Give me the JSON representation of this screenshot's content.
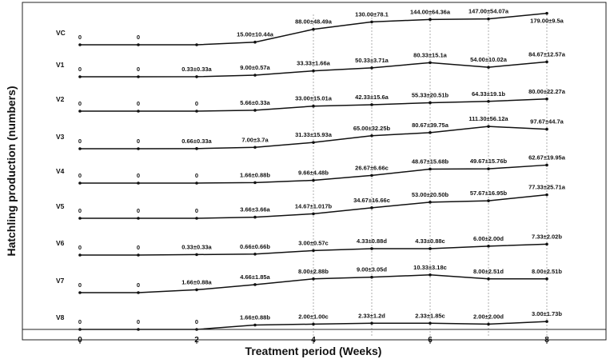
{
  "chart_data": {
    "type": "line",
    "xlabel": "Treatment period (Weeks)",
    "ylabel": "Hatchling production (numbers)",
    "x": [
      0,
      1,
      2,
      3,
      4,
      5,
      6,
      7,
      8
    ],
    "xticks": [
      "0",
      "2",
      "4",
      "6",
      "8"
    ],
    "xlim": [
      0,
      8
    ],
    "grid": false,
    "series": [
      {
        "name": "VC",
        "values": [
          0,
          0,
          0,
          15.0,
          88.0,
          130.0,
          144.0,
          147.0,
          179.0
        ],
        "labels": [
          "0",
          "0",
          "",
          "15.00±10.44a",
          "88.00±48.49a",
          "130.00±78.1",
          "144.00±64.36a",
          "147.00±54.07a",
          "179.00±9.5a"
        ]
      },
      {
        "name": "V1",
        "values": [
          0,
          0,
          0.33,
          9.0,
          33.33,
          50.33,
          80.33,
          54.0,
          84.67
        ],
        "labels": [
          "0",
          "0",
          "0.33±0.33a",
          "9.00±0.57a",
          "33.33±1.66a",
          "50.33±3.71a",
          "80.33±15.1a",
          "54.00±10.02a",
          "84.67±12.57a"
        ]
      },
      {
        "name": "V2",
        "values": [
          0,
          0,
          0,
          5.66,
          33.0,
          42.33,
          55.33,
          64.33,
          80.0
        ],
        "labels": [
          "0",
          "0",
          "0",
          "5.66±0.33a",
          "33.00±15.01a",
          "42.33±15.6a",
          "55.33±20.51b",
          "64.33±19.1b",
          "80.00±22.27a"
        ]
      },
      {
        "name": "V3",
        "values": [
          0,
          0,
          0.66,
          7.0,
          31.33,
          65.0,
          80.67,
          111.3,
          97.67
        ],
        "labels": [
          "0",
          "0",
          "0.66±0.33a",
          "7.00±3.7a",
          "31.33±15.93a",
          "65.00±32.25b",
          "80.67±39.75a",
          "111.30±56.12a",
          "97.67±44.7a"
        ]
      },
      {
        "name": "V4",
        "values": [
          0,
          0,
          0,
          1.66,
          9.66,
          26.67,
          48.67,
          49.67,
          62.67
        ],
        "labels": [
          "0",
          "0",
          "0",
          "1.66±0.88b",
          "9.66±4.48b",
          "26.67±6.66c",
          "48.67±15.68b",
          "49.67±15.76b",
          "62.67±19.95a"
        ]
      },
      {
        "name": "V5",
        "values": [
          0,
          0,
          0,
          3.66,
          14.67,
          34.67,
          53.0,
          57.67,
          77.33
        ],
        "labels": [
          "0",
          "0",
          "0",
          "3.66±3.66a",
          "14.67±1.017b",
          "34.67±16.66c",
          "53.00±20.50b",
          "57.67±16.95b",
          "77.33±25.71a"
        ]
      },
      {
        "name": "V6",
        "values": [
          0,
          0,
          0.33,
          0.66,
          3.0,
          4.33,
          4.33,
          6.0,
          7.33
        ],
        "labels": [
          "0",
          "0",
          "0.33±0.33a",
          "0.66±0.66b",
          "3.00±0.57c",
          "4.33±0.88d",
          "4.33±0.88c",
          "6.00±2.00d",
          "7.33±2.02b"
        ]
      },
      {
        "name": "V7",
        "values": [
          0,
          0,
          1.66,
          4.66,
          8.0,
          9.0,
          10.33,
          8.0,
          8.0
        ],
        "labels": [
          "0",
          "0",
          "1.66±0.88a",
          "4.66±1.85a",
          "8.00±2.88b",
          "9.00±3.05d",
          "10.33±3.18c",
          "8.00±2.51d",
          "8.00±2.51b"
        ]
      },
      {
        "name": "V8",
        "values": [
          0,
          0,
          0,
          1.66,
          2.0,
          2.33,
          2.33,
          2.0,
          3.0
        ],
        "labels": [
          "0",
          "0",
          "0",
          "1.66±0.88b",
          "2.00±1.00c",
          "2.33±1.2d",
          "2.33±1.85c",
          "2.00±2.00d",
          "3.00±1.73b"
        ]
      }
    ]
  }
}
